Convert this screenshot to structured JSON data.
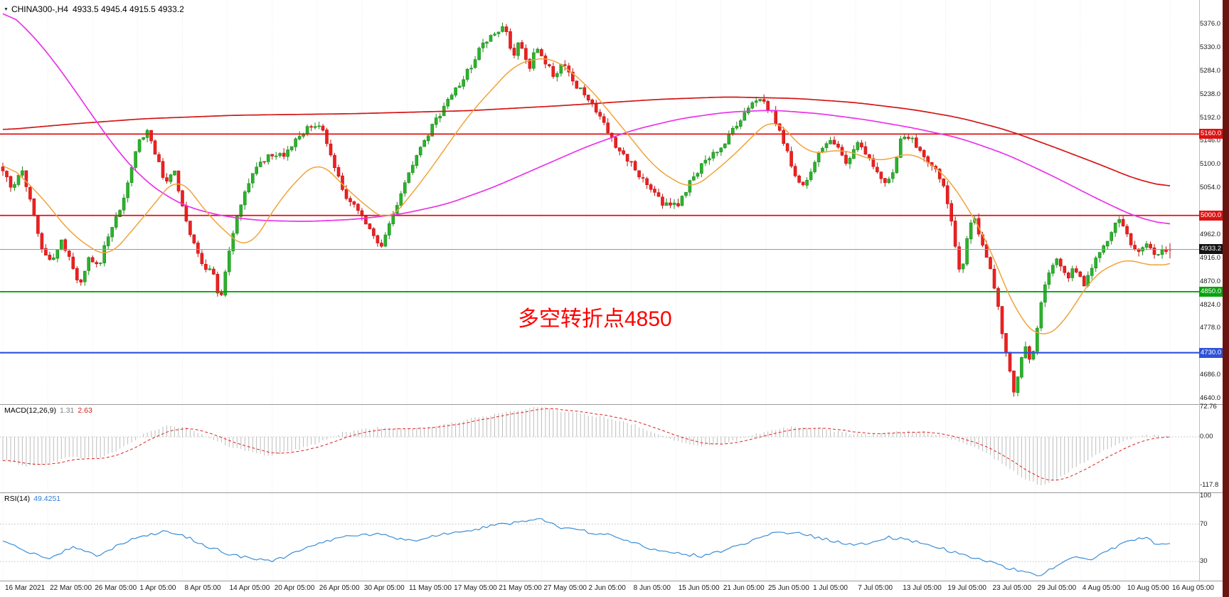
{
  "window": {
    "edge_strip_color": "#6b1512"
  },
  "header": {
    "collapse_icon": "▼",
    "symbol_period": "CHINA300-,H4",
    "ohlc": "4933.5 4945.4 4915.5 4933.2"
  },
  "annotation": {
    "text": "多空转折点4850",
    "color": "#fe0000"
  },
  "chart_data": {
    "type": "candlestick",
    "symbol": "CHINA300-",
    "period": "H4",
    "current": {
      "open": 4933.5,
      "high": 4945.4,
      "low": 4915.5,
      "close": 4933.2
    },
    "bars": 300,
    "price_axis_ticks": [
      5376,
      5330,
      5284,
      5238,
      5192,
      5146,
      5100,
      5054,
      4962,
      4916,
      4870,
      4824,
      4778,
      4686,
      4640
    ],
    "levels": [
      {
        "price": 5160,
        "label": "5160.0",
        "color": "#df1212",
        "width": 1.8
      },
      {
        "price": 5000,
        "label": "5000.0",
        "color": "#df1212",
        "width": 1.8
      },
      {
        "price": 4850,
        "label": "4850.0",
        "color": "#07a30c",
        "width": 1.8
      },
      {
        "price": 4730,
        "label": "4730.0",
        "color": "#2e52d8",
        "width": 2.2
      }
    ],
    "current_price_line": {
      "price": 4933.2,
      "label": "4933.2",
      "line_color": "#7b9cd0",
      "badge_color": "#141414"
    },
    "colors": {
      "up_fill": "#2bb32b",
      "up_stroke": "#1d8a1d",
      "down_fill": "#ef2020",
      "down_stroke": "#c01212",
      "grid": "#e9e9e9"
    },
    "noise": {
      "seed": 20210816,
      "close_vol": 6,
      "wick": 10
    },
    "close_waypoints": [
      [
        0.0,
        5085
      ],
      [
        0.008,
        5055
      ],
      [
        0.016,
        5090
      ],
      [
        0.025,
        5020
      ],
      [
        0.033,
        4940
      ],
      [
        0.042,
        4905
      ],
      [
        0.05,
        4955
      ],
      [
        0.058,
        4910
      ],
      [
        0.066,
        4865
      ],
      [
        0.074,
        4920
      ],
      [
        0.082,
        4895
      ],
      [
        0.09,
        4960
      ],
      [
        0.1,
        5010
      ],
      [
        0.108,
        5075
      ],
      [
        0.115,
        5135
      ],
      [
        0.123,
        5170
      ],
      [
        0.131,
        5120
      ],
      [
        0.139,
        5065
      ],
      [
        0.147,
        5085
      ],
      [
        0.154,
        5020
      ],
      [
        0.163,
        4945
      ],
      [
        0.171,
        4900
      ],
      [
        0.179,
        4895
      ],
      [
        0.186,
        4832
      ],
      [
        0.193,
        4925
      ],
      [
        0.201,
        5000
      ],
      [
        0.209,
        5060
      ],
      [
        0.217,
        5090
      ],
      [
        0.228,
        5118
      ],
      [
        0.24,
        5118
      ],
      [
        0.252,
        5148
      ],
      [
        0.262,
        5172
      ],
      [
        0.272,
        5178
      ],
      [
        0.282,
        5110
      ],
      [
        0.292,
        5045
      ],
      [
        0.3,
        5020
      ],
      [
        0.308,
        4995
      ],
      [
        0.316,
        4965
      ],
      [
        0.324,
        4938
      ],
      [
        0.334,
        5000
      ],
      [
        0.344,
        5060
      ],
      [
        0.358,
        5135
      ],
      [
        0.372,
        5190
      ],
      [
        0.386,
        5240
      ],
      [
        0.4,
        5290
      ],
      [
        0.412,
        5340
      ],
      [
        0.422,
        5360
      ],
      [
        0.43,
        5374
      ],
      [
        0.437,
        5310
      ],
      [
        0.443,
        5345
      ],
      [
        0.45,
        5285
      ],
      [
        0.457,
        5330
      ],
      [
        0.465,
        5300
      ],
      [
        0.473,
        5270
      ],
      [
        0.481,
        5303
      ],
      [
        0.49,
        5258
      ],
      [
        0.5,
        5232
      ],
      [
        0.512,
        5192
      ],
      [
        0.524,
        5140
      ],
      [
        0.538,
        5105
      ],
      [
        0.552,
        5058
      ],
      [
        0.565,
        5025
      ],
      [
        0.577,
        5018
      ],
      [
        0.588,
        5062
      ],
      [
        0.6,
        5105
      ],
      [
        0.615,
        5135
      ],
      [
        0.628,
        5175
      ],
      [
        0.64,
        5212
      ],
      [
        0.65,
        5232
      ],
      [
        0.66,
        5198
      ],
      [
        0.668,
        5150
      ],
      [
        0.676,
        5095
      ],
      [
        0.684,
        5050
      ],
      [
        0.692,
        5085
      ],
      [
        0.7,
        5122
      ],
      [
        0.708,
        5152
      ],
      [
        0.716,
        5128
      ],
      [
        0.724,
        5098
      ],
      [
        0.731,
        5145
      ],
      [
        0.74,
        5118
      ],
      [
        0.748,
        5092
      ],
      [
        0.756,
        5060
      ],
      [
        0.763,
        5092
      ],
      [
        0.769,
        5146
      ],
      [
        0.777,
        5158
      ],
      [
        0.785,
        5125
      ],
      [
        0.793,
        5098
      ],
      [
        0.8,
        5085
      ],
      [
        0.806,
        5060
      ],
      [
        0.812,
        5000
      ],
      [
        0.817,
        4930
      ],
      [
        0.821,
        4872
      ],
      [
        0.826,
        4950
      ],
      [
        0.831,
        5000
      ],
      [
        0.838,
        4955
      ],
      [
        0.845,
        4905
      ],
      [
        0.852,
        4828
      ],
      [
        0.859,
        4735
      ],
      [
        0.866,
        4652
      ],
      [
        0.871,
        4698
      ],
      [
        0.876,
        4745
      ],
      [
        0.881,
        4702
      ],
      [
        0.886,
        4770
      ],
      [
        0.891,
        4848
      ],
      [
        0.897,
        4895
      ],
      [
        0.904,
        4912
      ],
      [
        0.911,
        4876
      ],
      [
        0.919,
        4896
      ],
      [
        0.927,
        4864
      ],
      [
        0.934,
        4900
      ],
      [
        0.941,
        4930
      ],
      [
        0.949,
        4966
      ],
      [
        0.957,
        4996
      ],
      [
        0.964,
        4956
      ],
      [
        0.971,
        4925
      ],
      [
        0.979,
        4946
      ],
      [
        0.987,
        4920
      ],
      [
        1.0,
        4933
      ]
    ],
    "moving_averages": [
      {
        "name": "ma-slow-red",
        "color": "#d41616",
        "width": 1.7,
        "waypoints": [
          [
            0.0,
            5168
          ],
          [
            0.06,
            5180
          ],
          [
            0.12,
            5190
          ],
          [
            0.2,
            5197
          ],
          [
            0.3,
            5200
          ],
          [
            0.4,
            5206
          ],
          [
            0.48,
            5216
          ],
          [
            0.56,
            5228
          ],
          [
            0.62,
            5233
          ],
          [
            0.68,
            5230
          ],
          [
            0.73,
            5222
          ],
          [
            0.78,
            5208
          ],
          [
            0.82,
            5192
          ],
          [
            0.86,
            5168
          ],
          [
            0.9,
            5135
          ],
          [
            0.94,
            5100
          ],
          [
            0.97,
            5072
          ],
          [
            1.0,
            5055
          ]
        ]
      },
      {
        "name": "ma-mid-magenta",
        "color": "#ea33ea",
        "width": 1.7,
        "waypoints": [
          [
            0.0,
            5408
          ],
          [
            0.02,
            5368
          ],
          [
            0.04,
            5315
          ],
          [
            0.06,
            5252
          ],
          [
            0.08,
            5185
          ],
          [
            0.1,
            5122
          ],
          [
            0.12,
            5072
          ],
          [
            0.14,
            5038
          ],
          [
            0.16,
            5015
          ],
          [
            0.19,
            4998
          ],
          [
            0.22,
            4990
          ],
          [
            0.26,
            4988
          ],
          [
            0.3,
            4992
          ],
          [
            0.34,
            5002
          ],
          [
            0.38,
            5022
          ],
          [
            0.42,
            5055
          ],
          [
            0.46,
            5095
          ],
          [
            0.5,
            5135
          ],
          [
            0.54,
            5168
          ],
          [
            0.58,
            5190
          ],
          [
            0.62,
            5203
          ],
          [
            0.66,
            5207
          ],
          [
            0.7,
            5200
          ],
          [
            0.74,
            5188
          ],
          [
            0.78,
            5172
          ],
          [
            0.82,
            5152
          ],
          [
            0.86,
            5120
          ],
          [
            0.9,
            5077
          ],
          [
            0.94,
            5030
          ],
          [
            0.97,
            4998
          ],
          [
            1.0,
            4980
          ]
        ]
      },
      {
        "name": "ma-fast-orange",
        "color": "#f0a33a",
        "width": 1.5,
        "waypoints": [
          [
            0.0,
            5110
          ],
          [
            0.03,
            5045
          ],
          [
            0.06,
            4960
          ],
          [
            0.09,
            4915
          ],
          [
            0.12,
            4995
          ],
          [
            0.15,
            5080
          ],
          [
            0.18,
            4990
          ],
          [
            0.21,
            4930
          ],
          [
            0.24,
            5040
          ],
          [
            0.27,
            5110
          ],
          [
            0.3,
            5040
          ],
          [
            0.33,
            4985
          ],
          [
            0.36,
            5070
          ],
          [
            0.4,
            5200
          ],
          [
            0.44,
            5300
          ],
          [
            0.47,
            5312
          ],
          [
            0.5,
            5258
          ],
          [
            0.53,
            5175
          ],
          [
            0.56,
            5090
          ],
          [
            0.59,
            5050
          ],
          [
            0.62,
            5105
          ],
          [
            0.66,
            5195
          ],
          [
            0.69,
            5120
          ],
          [
            0.72,
            5130
          ],
          [
            0.75,
            5105
          ],
          [
            0.78,
            5125
          ],
          [
            0.81,
            5075
          ],
          [
            0.84,
            4965
          ],
          [
            0.87,
            4800
          ],
          [
            0.89,
            4755
          ],
          [
            0.91,
            4790
          ],
          [
            0.93,
            4870
          ],
          [
            0.95,
            4905
          ],
          [
            0.97,
            4915
          ],
          [
            0.985,
            4895
          ],
          [
            1.0,
            4912
          ]
        ]
      }
    ],
    "macd": {
      "label": "MACD(12,26,9)",
      "value_main": "1.31",
      "value_signal": "2.63",
      "max": 72.76,
      "min": -117.8,
      "axis_ticks": [
        {
          "value": 72.76,
          "label": "72.76"
        },
        {
          "value": 0,
          "label": "0.00"
        },
        {
          "value": -117.8,
          "label": "-117.8"
        }
      ],
      "histogram_color": "#bdbdbd",
      "signal_color": "#e02020",
      "waypoints": [
        [
          0.0,
          -55
        ],
        [
          0.02,
          -70
        ],
        [
          0.04,
          -62
        ],
        [
          0.06,
          -48
        ],
        [
          0.08,
          -52
        ],
        [
          0.1,
          -30
        ],
        [
          0.12,
          5
        ],
        [
          0.14,
          28
        ],
        [
          0.16,
          20
        ],
        [
          0.18,
          -8
        ],
        [
          0.2,
          -28
        ],
        [
          0.23,
          -45
        ],
        [
          0.26,
          -25
        ],
        [
          0.29,
          10
        ],
        [
          0.32,
          22
        ],
        [
          0.35,
          18
        ],
        [
          0.38,
          30
        ],
        [
          0.41,
          48
        ],
        [
          0.44,
          62
        ],
        [
          0.46,
          72
        ],
        [
          0.48,
          60
        ],
        [
          0.5,
          52
        ],
        [
          0.52,
          44
        ],
        [
          0.54,
          30
        ],
        [
          0.56,
          8
        ],
        [
          0.58,
          -12
        ],
        [
          0.6,
          -22
        ],
        [
          0.62,
          -15
        ],
        [
          0.64,
          2
        ],
        [
          0.66,
          18
        ],
        [
          0.68,
          24
        ],
        [
          0.7,
          20
        ],
        [
          0.72,
          10
        ],
        [
          0.74,
          4
        ],
        [
          0.76,
          10
        ],
        [
          0.78,
          14
        ],
        [
          0.8,
          6
        ],
        [
          0.82,
          -12
        ],
        [
          0.84,
          -35
        ],
        [
          0.86,
          -70
        ],
        [
          0.875,
          -100
        ],
        [
          0.89,
          -117
        ],
        [
          0.905,
          -98
        ],
        [
          0.92,
          -70
        ],
        [
          0.935,
          -45
        ],
        [
          0.95,
          -22
        ],
        [
          0.965,
          -5
        ],
        [
          0.98,
          4
        ],
        [
          1.0,
          1.3
        ]
      ]
    },
    "rsi": {
      "label": "RSI(14)",
      "value": "49.4251",
      "line_color": "#3b8fd8",
      "axis_ticks": [
        {
          "value": 100,
          "label": "100"
        },
        {
          "value": 70,
          "label": "70"
        },
        {
          "value": 30,
          "label": "30"
        }
      ],
      "levels": [
        70,
        30
      ],
      "waypoints": [
        [
          0.0,
          52
        ],
        [
          0.02,
          40
        ],
        [
          0.04,
          34
        ],
        [
          0.06,
          45
        ],
        [
          0.08,
          36
        ],
        [
          0.1,
          48
        ],
        [
          0.12,
          58
        ],
        [
          0.14,
          62
        ],
        [
          0.16,
          55
        ],
        [
          0.18,
          44
        ],
        [
          0.2,
          36
        ],
        [
          0.23,
          30
        ],
        [
          0.26,
          44
        ],
        [
          0.29,
          56
        ],
        [
          0.32,
          60
        ],
        [
          0.35,
          52
        ],
        [
          0.38,
          60
        ],
        [
          0.41,
          66
        ],
        [
          0.44,
          72
        ],
        [
          0.46,
          75
        ],
        [
          0.48,
          66
        ],
        [
          0.5,
          62
        ],
        [
          0.52,
          58
        ],
        [
          0.54,
          50
        ],
        [
          0.56,
          42
        ],
        [
          0.58,
          38
        ],
        [
          0.6,
          36
        ],
        [
          0.62,
          42
        ],
        [
          0.64,
          52
        ],
        [
          0.66,
          60
        ],
        [
          0.68,
          62
        ],
        [
          0.7,
          55
        ],
        [
          0.72,
          50
        ],
        [
          0.74,
          48
        ],
        [
          0.76,
          56
        ],
        [
          0.78,
          52
        ],
        [
          0.8,
          46
        ],
        [
          0.82,
          38
        ],
        [
          0.84,
          32
        ],
        [
          0.86,
          24
        ],
        [
          0.875,
          18
        ],
        [
          0.89,
          16
        ],
        [
          0.905,
          28
        ],
        [
          0.92,
          36
        ],
        [
          0.935,
          33
        ],
        [
          0.95,
          44
        ],
        [
          0.965,
          52
        ],
        [
          0.98,
          55
        ],
        [
          0.99,
          48
        ],
        [
          1.0,
          49.4
        ]
      ]
    },
    "time_axis_labels": [
      "16 Mar 2021",
      "22 Mar 05:00",
      "26 Mar 05:00",
      "1 Apr 05:00",
      "8 Apr 05:00",
      "14 Apr 05:00",
      "20 Apr 05:00",
      "26 Apr 05:00",
      "30 Apr 05:00",
      "11 May 05:00",
      "17 May 05:00",
      "21 May 05:00",
      "27 May 05:00",
      "2 Jun 05:00",
      "8 Jun 05:00",
      "15 Jun 05:00",
      "21 Jun 05:00",
      "25 Jun 05:00",
      "1 Jul 05:00",
      "7 Jul 05:00",
      "13 Jul 05:00",
      "19 Jul 05:00",
      "23 Jul 05:00",
      "29 Jul 05:00",
      "4 Aug 05:00",
      "10 Aug 05:00",
      "16 Aug 05:00"
    ]
  }
}
